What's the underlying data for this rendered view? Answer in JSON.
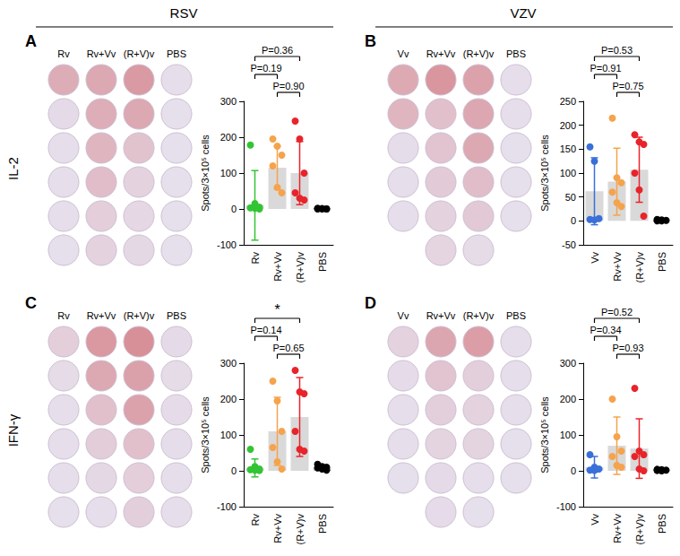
{
  "columns": [
    "RSV",
    "VZV"
  ],
  "rows": [
    "IL-2",
    "IFN-γ"
  ],
  "chart_data": [
    {
      "type": "bar",
      "title": "A",
      "categories": [
        "Rv",
        "Rv+Vv",
        "(R+V)v",
        "PBS"
      ],
      "values": [
        10,
        115,
        100,
        0
      ],
      "errors": [
        97,
        60,
        88,
        2
      ],
      "points": [
        [
          178,
          15,
          5,
          3,
          2,
          0
        ],
        [
          195,
          175,
          150,
          120,
          60,
          45
        ],
        [
          245,
          195,
          100,
          45,
          30,
          25
        ],
        [
          2,
          1,
          0,
          0,
          0,
          0
        ]
      ],
      "color": "#d9d9d9",
      "colors": [
        "#33c433",
        "#f5a34c",
        "#e8242b",
        "#000000"
      ],
      "ylim": [
        -100,
        300
      ],
      "yticks": [
        -100,
        0,
        100,
        200,
        300
      ],
      "ylabel": "Spots/3×10⁵ cells",
      "grid": false,
      "annotations": [
        {
          "between": [
            "Rv",
            "(R+V)v"
          ],
          "text": "P=0.36"
        },
        {
          "between": [
            "Rv",
            "Rv+Vv"
          ],
          "text": "P=0.19"
        },
        {
          "between": [
            "Rv+Vv",
            "(R+V)v"
          ],
          "text": "P=0.90"
        }
      ]
    },
    {
      "type": "bar",
      "title": "B",
      "categories": [
        "Vv",
        "Rv+Vv",
        "(R+V)v",
        "PBS"
      ],
      "values": [
        62,
        82,
        107,
        2
      ],
      "errors": [
        70,
        70,
        68,
        2
      ],
      "points": [
        [
          155,
          125,
          5,
          3,
          2
        ],
        [
          215,
          90,
          80,
          60,
          38,
          30
        ],
        [
          180,
          165,
          160,
          100,
          65,
          10
        ],
        [
          3,
          2,
          1,
          0,
          0
        ]
      ],
      "color": "#d9d9d9",
      "colors": [
        "#3a6fd8",
        "#f5a34c",
        "#e8242b",
        "#000000"
      ],
      "ylim": [
        -50,
        250
      ],
      "yticks": [
        -50,
        0,
        50,
        100,
        150,
        200,
        250
      ],
      "ylabel": "Spots/3×10⁵ cells",
      "grid": false,
      "annotations": [
        {
          "between": [
            "Vv",
            "(R+V)v"
          ],
          "text": "P=0.53"
        },
        {
          "between": [
            "Vv",
            "Rv+Vv"
          ],
          "text": "P=0.91"
        },
        {
          "between": [
            "Rv+Vv",
            "(R+V)v"
          ],
          "text": "P=0.75"
        }
      ]
    },
    {
      "type": "bar",
      "title": "C",
      "categories": [
        "Rv",
        "Rv+Vv",
        "(R+V)v",
        "PBS"
      ],
      "values": [
        8,
        110,
        150,
        10
      ],
      "errors": [
        25,
        95,
        110,
        6
      ],
      "points": [
        [
          60,
          12,
          5,
          3,
          2,
          1
        ],
        [
          250,
          195,
          110,
          65,
          25,
          5
        ],
        [
          280,
          220,
          215,
          110,
          60,
          55
        ],
        [
          18,
          12,
          10,
          8,
          5,
          2
        ]
      ],
      "color": "#d9d9d9",
      "colors": [
        "#33c433",
        "#f5a34c",
        "#e8242b",
        "#000000"
      ],
      "ylim": [
        -100,
        300
      ],
      "yticks": [
        -100,
        0,
        100,
        200,
        300
      ],
      "ylabel": "Spots/3×10⁵ cells",
      "grid": false,
      "annotations": [
        {
          "between": [
            "Rv",
            "(R+V)v"
          ],
          "text": "*"
        },
        {
          "between": [
            "Rv",
            "Rv+Vv"
          ],
          "text": "P=0.14"
        },
        {
          "between": [
            "Rv+Vv",
            "(R+V)v"
          ],
          "text": "P=0.65"
        }
      ]
    },
    {
      "type": "bar",
      "title": "D",
      "categories": [
        "Vv",
        "Rv+Vv",
        "(R+V)v",
        "PBS"
      ],
      "values": [
        10,
        70,
        62,
        2
      ],
      "errors": [
        30,
        80,
        83,
        3
      ],
      "points": [
        [
          45,
          10,
          5,
          2,
          1
        ],
        [
          200,
          95,
          55,
          40,
          15,
          10
        ],
        [
          230,
          55,
          45,
          40,
          5,
          0
        ],
        [
          4,
          3,
          2,
          1,
          0
        ]
      ],
      "color": "#d9d9d9",
      "colors": [
        "#3a6fd8",
        "#f5a34c",
        "#e8242b",
        "#000000"
      ],
      "ylim": [
        -100,
        300
      ],
      "yticks": [
        -100,
        0,
        100,
        200,
        300
      ],
      "ylabel": "Spots/3×10⁵ cells",
      "grid": false,
      "annotations": [
        {
          "between": [
            "Vv",
            "(R+V)v"
          ],
          "text": "P=0.52"
        },
        {
          "between": [
            "Vv",
            "Rv+Vv"
          ],
          "text": "P=0.34"
        },
        {
          "between": [
            "Rv+Vv",
            "(R+V)v"
          ],
          "text": "P=0.93"
        }
      ]
    }
  ]
}
